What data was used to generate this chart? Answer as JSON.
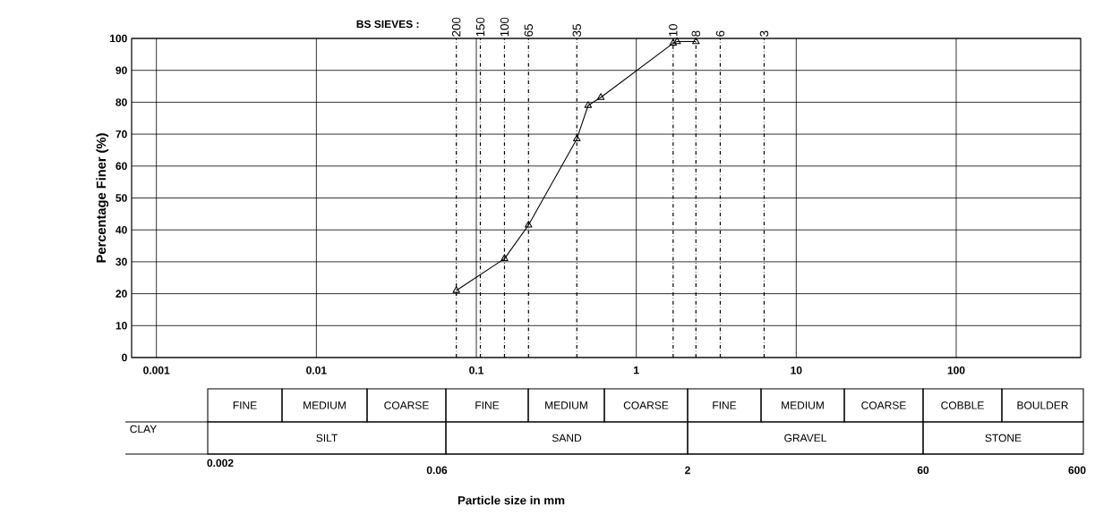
{
  "chart_data": [
    {
      "type": "line",
      "ylabel": "Percentage Finer  (%)",
      "xlabel": "Particle    size    in    mm",
      "annotations": [
        "BS SIEVES :",
        {
          "text": "200",
          "x": 0.075,
          "y": 100
        },
        {
          "text": "150",
          "x": 0.106,
          "y": 100
        },
        {
          "text": "100",
          "x": 0.15,
          "y": 100
        },
        {
          "text": "65",
          "x": 0.212,
          "y": 100
        },
        {
          "text": "35",
          "x": 0.425,
          "y": 100
        },
        {
          "text": "10",
          "x": 1.7,
          "y": 100
        },
        {
          "text": "8",
          "x": 2.36,
          "y": 100
        },
        {
          "text": "6",
          "x": 3.35,
          "y": 100
        },
        {
          "text": "3",
          "x": 6.3,
          "y": 100
        }
      ],
      "x": [
        0.075,
        0.15,
        0.212,
        0.425,
        0.5,
        0.6,
        1.7,
        1.8,
        2.36
      ],
      "series": [
        {
          "color": "#000000",
          "values": [
            21,
            31,
            41.5,
            68.5,
            79,
            81.5,
            98.5,
            99,
            99
          ]
        }
      ],
      "marker": "triangle",
      "line_style": "solid",
      "log": "x",
      "grid": true,
      "xlim": [
        0.0007,
        600
      ],
      "ylim": [
        0,
        100
      ],
      "xticks": [
        0.001,
        0.01,
        0.1,
        1,
        10,
        100
      ],
      "yticks": [
        0,
        10,
        20,
        30,
        40,
        50,
        60,
        70,
        80,
        90,
        100
      ],
      "ref_lines": [
        {
          "axis": "x",
          "value": 0.075,
          "line_style": "dashed"
        },
        {
          "axis": "x",
          "value": 0.106,
          "line_style": "dashed"
        },
        {
          "axis": "x",
          "value": 0.15,
          "line_style": "dashed"
        },
        {
          "axis": "x",
          "value": 0.212,
          "line_style": "dashed"
        },
        {
          "axis": "x",
          "value": 0.425,
          "line_style": "dashed"
        },
        {
          "axis": "x",
          "value": 1.7,
          "line_style": "dashed"
        },
        {
          "axis": "x",
          "value": 2.36,
          "line_style": "dashed"
        },
        {
          "axis": "x",
          "value": 3.35,
          "line_style": "dashed"
        },
        {
          "axis": "x",
          "value": 6.3,
          "line_style": "dashed"
        }
      ]
    },
    {
      "type": "other",
      "annotations": [
        "FINE",
        "MEDIUM",
        "COARSE",
        "FINE",
        "MEDIUM",
        "COARSE",
        "FINE",
        "MEDIUM",
        "COARSE",
        "COBBLE",
        "BOULDER",
        "CLAY",
        "SILT",
        "SAND",
        "GRAVEL",
        "STONE",
        "0.002",
        "0.06",
        "2",
        "60",
        "600"
      ]
    }
  ]
}
